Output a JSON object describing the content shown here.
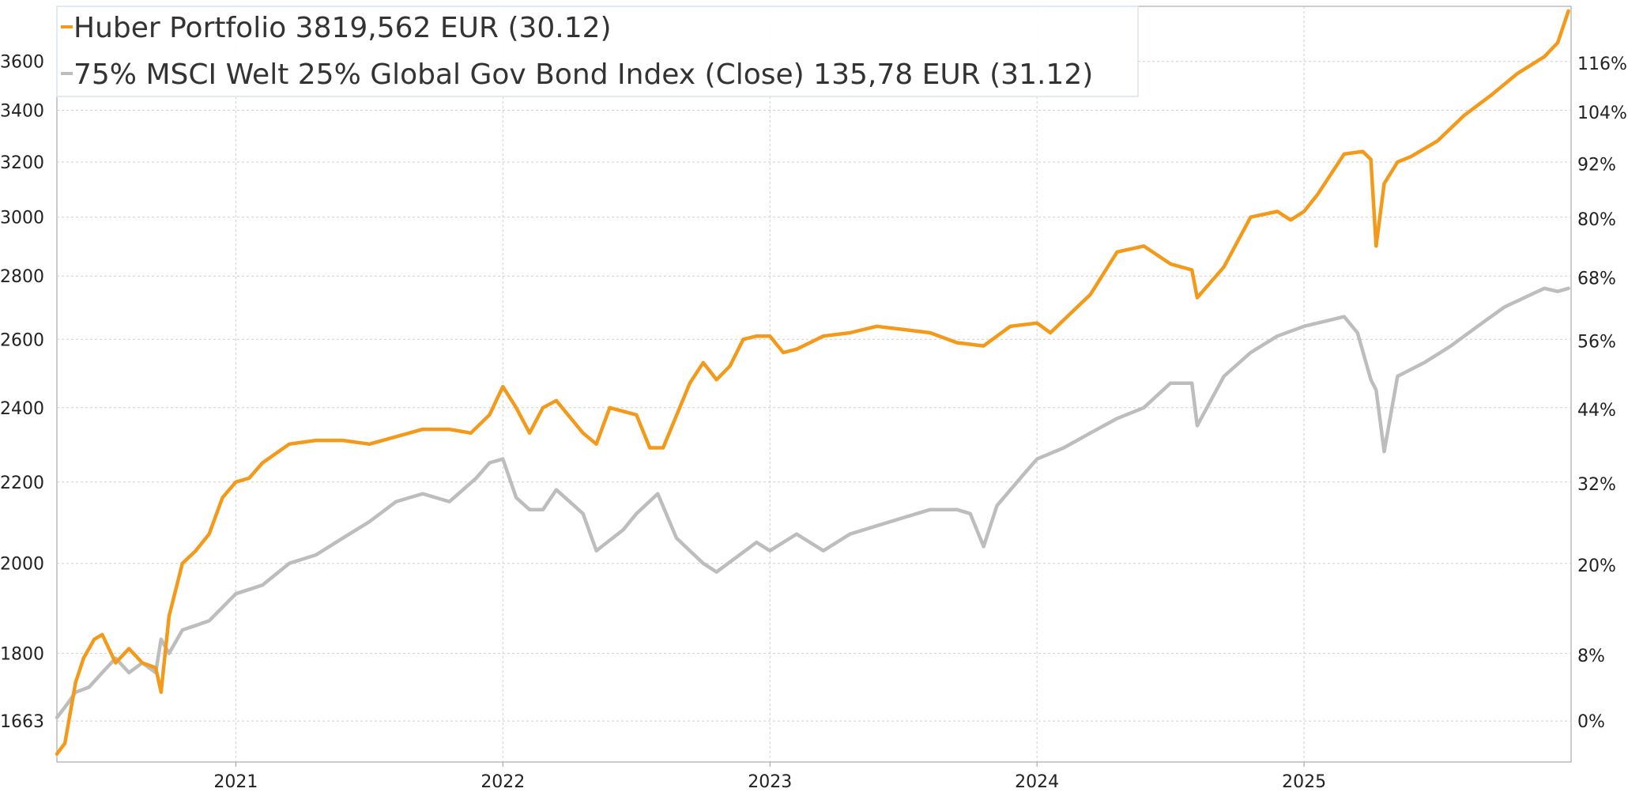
{
  "chart_data": {
    "type": "line",
    "legend": [
      {
        "label": "Huber Portfolio 3819,562 EUR (30.12)",
        "color": "#f39a1b"
      },
      {
        "label": "75% MSCI Welt 25% Global Gov Bond Index (Close) 135,78 EUR (31.12)",
        "color": "#bdbdbd"
      }
    ],
    "legend_position": "top-left",
    "x_ticks": [
      "2021",
      "2022",
      "2023",
      "2024",
      "2025"
    ],
    "x_range": [
      2020.33,
      2026.0
    ],
    "y_left_ticks": [
      1663,
      1800,
      2000,
      2200,
      2400,
      2600,
      2800,
      3000,
      3200,
      3400,
      3600
    ],
    "y_left_tick_labels": [
      "1663",
      "1800",
      "2000",
      "2200",
      "2400",
      "2600",
      "2800",
      "3000",
      "3200",
      "3400",
      "3600"
    ],
    "y_left_scale": "log",
    "y_left_range": [
      1585,
      3840
    ],
    "y_right_ticks": [
      0,
      8,
      20,
      32,
      44,
      56,
      68,
      80,
      92,
      104,
      116
    ],
    "y_right_tick_labels": [
      "0%",
      "8%",
      "20%",
      "32%",
      "44%",
      "56%",
      "68%",
      "80%",
      "92%",
      "104%",
      "116%"
    ],
    "grid": true,
    "series": [
      {
        "name": "Huber Portfolio",
        "color": "#f39a1b",
        "x": [
          2020.33,
          2020.36,
          2020.4,
          2020.43,
          2020.47,
          2020.5,
          2020.55,
          2020.6,
          2020.65,
          2020.7,
          2020.72,
          2020.75,
          2020.8,
          2020.85,
          2020.9,
          2020.95,
          2021.0,
          2021.05,
          2021.1,
          2021.2,
          2021.3,
          2021.4,
          2021.5,
          2021.6,
          2021.7,
          2021.8,
          2021.88,
          2021.95,
          2022.0,
          2022.05,
          2022.1,
          2022.15,
          2022.2,
          2022.3,
          2022.35,
          2022.4,
          2022.5,
          2022.55,
          2022.6,
          2022.7,
          2022.75,
          2022.8,
          2022.85,
          2022.9,
          2022.95,
          2023.0,
          2023.05,
          2023.1,
          2023.2,
          2023.3,
          2023.4,
          2023.5,
          2023.6,
          2023.7,
          2023.8,
          2023.9,
          2024.0,
          2024.05,
          2024.1,
          2024.2,
          2024.3,
          2024.4,
          2024.5,
          2024.58,
          2024.6,
          2024.7,
          2024.8,
          2024.9,
          2024.95,
          2025.0,
          2025.05,
          2025.15,
          2025.22,
          2025.25,
          2025.27,
          2025.3,
          2025.35,
          2025.4,
          2025.5,
          2025.6,
          2025.7,
          2025.8,
          2025.9,
          2025.95,
          2025.99
        ],
        "y": [
          1600,
          1620,
          1740,
          1790,
          1830,
          1840,
          1780,
          1810,
          1780,
          1770,
          1720,
          1880,
          2000,
          2030,
          2070,
          2160,
          2200,
          2210,
          2250,
          2300,
          2310,
          2310,
          2300,
          2320,
          2340,
          2340,
          2330,
          2380,
          2460,
          2400,
          2330,
          2400,
          2420,
          2330,
          2300,
          2400,
          2380,
          2290,
          2290,
          2470,
          2530,
          2480,
          2520,
          2600,
          2610,
          2610,
          2560,
          2570,
          2610,
          2620,
          2640,
          2630,
          2620,
          2590,
          2580,
          2640,
          2650,
          2620,
          2660,
          2740,
          2880,
          2900,
          2840,
          2820,
          2730,
          2830,
          3000,
          3020,
          2990,
          3020,
          3080,
          3230,
          3240,
          3210,
          2900,
          3120,
          3200,
          3220,
          3280,
          3380,
          3460,
          3550,
          3620,
          3680,
          3819
        ]
      },
      {
        "name": "75% MSCI Welt 25% Global Gov Bond Index",
        "color": "#bdbdbd",
        "x": [
          2020.33,
          2020.36,
          2020.4,
          2020.45,
          2020.5,
          2020.55,
          2020.6,
          2020.65,
          2020.7,
          2020.72,
          2020.75,
          2020.8,
          2020.9,
          2021.0,
          2021.05,
          2021.1,
          2021.2,
          2021.3,
          2021.4,
          2021.5,
          2021.6,
          2021.7,
          2021.8,
          2021.9,
          2021.95,
          2022.0,
          2022.05,
          2022.1,
          2022.15,
          2022.2,
          2022.25,
          2022.3,
          2022.35,
          2022.45,
          2022.5,
          2022.58,
          2022.65,
          2022.75,
          2022.8,
          2022.95,
          2023.0,
          2023.1,
          2023.2,
          2023.3,
          2023.4,
          2023.5,
          2023.6,
          2023.7,
          2023.75,
          2023.8,
          2023.85,
          2023.95,
          2024.0,
          2024.1,
          2024.2,
          2024.3,
          2024.4,
          2024.5,
          2024.58,
          2024.6,
          2024.7,
          2024.8,
          2024.9,
          2025.0,
          2025.1,
          2025.15,
          2025.2,
          2025.25,
          2025.27,
          2025.3,
          2025.35,
          2025.45,
          2025.55,
          2025.65,
          2025.75,
          2025.85,
          2025.9,
          2025.95,
          2025.99
        ],
        "y": [
          1670,
          1690,
          1720,
          1730,
          1760,
          1790,
          1760,
          1780,
          1760,
          1830,
          1800,
          1850,
          1870,
          1930,
          1940,
          1950,
          2000,
          2020,
          2060,
          2100,
          2150,
          2170,
          2150,
          2210,
          2250,
          2260,
          2160,
          2130,
          2130,
          2180,
          2150,
          2120,
          2030,
          2080,
          2120,
          2170,
          2060,
          2000,
          1980,
          2050,
          2030,
          2070,
          2030,
          2070,
          2090,
          2110,
          2130,
          2130,
          2120,
          2040,
          2140,
          2220,
          2260,
          2290,
          2330,
          2370,
          2400,
          2470,
          2470,
          2350,
          2490,
          2560,
          2610,
          2640,
          2660,
          2670,
          2620,
          2480,
          2450,
          2280,
          2490,
          2530,
          2580,
          2640,
          2700,
          2740,
          2760,
          2750,
          2760
        ]
      }
    ]
  }
}
